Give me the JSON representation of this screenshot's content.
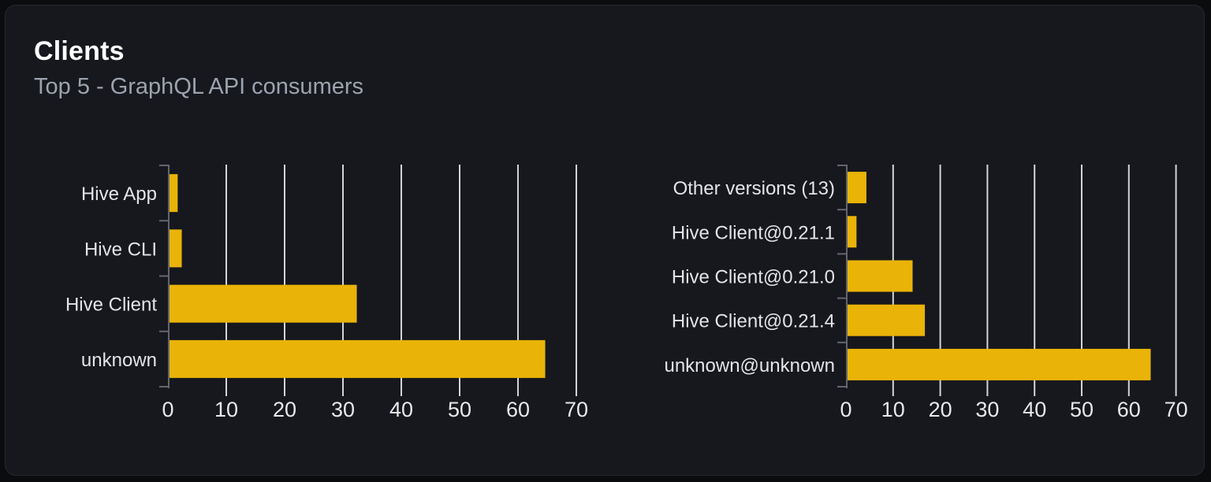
{
  "card": {
    "title": "Clients",
    "subtitle": "Top 5 - GraphQL API consumers"
  },
  "colors": {
    "bar": "#eab308",
    "gridline": "#d4d4d8",
    "axis": "#63666d",
    "label_text": "#e4e4e7",
    "tick_text": "#e8e8ea",
    "card_background": "#16181d",
    "page_background": "#0b0c0e"
  },
  "chart_data": [
    {
      "type": "bar",
      "orientation": "horizontal",
      "name": "clients",
      "categories": [
        "Hive App",
        "Hive CLI",
        "Hive Client",
        "unknown"
      ],
      "values": [
        1.4,
        2.1,
        32.1,
        64.4
      ],
      "xticks": [
        0,
        10,
        20,
        30,
        40,
        50,
        60,
        70
      ],
      "xlim": [
        0,
        70
      ],
      "grid": true,
      "legend": false,
      "title": "",
      "xlabel": "",
      "ylabel": ""
    },
    {
      "type": "bar",
      "orientation": "horizontal",
      "name": "client-versions",
      "categories": [
        "Other versions (13)",
        "Hive Client@0.21.1",
        "Hive Client@0.21.0",
        "Hive Client@0.21.4",
        "unknown@unknown"
      ],
      "values": [
        4.0,
        1.9,
        13.8,
        16.4,
        64.3
      ],
      "xticks": [
        0,
        10,
        20,
        30,
        40,
        50,
        60,
        70
      ],
      "xlim": [
        0,
        70
      ],
      "grid": true,
      "legend": false,
      "title": "",
      "xlabel": "",
      "ylabel": ""
    }
  ]
}
